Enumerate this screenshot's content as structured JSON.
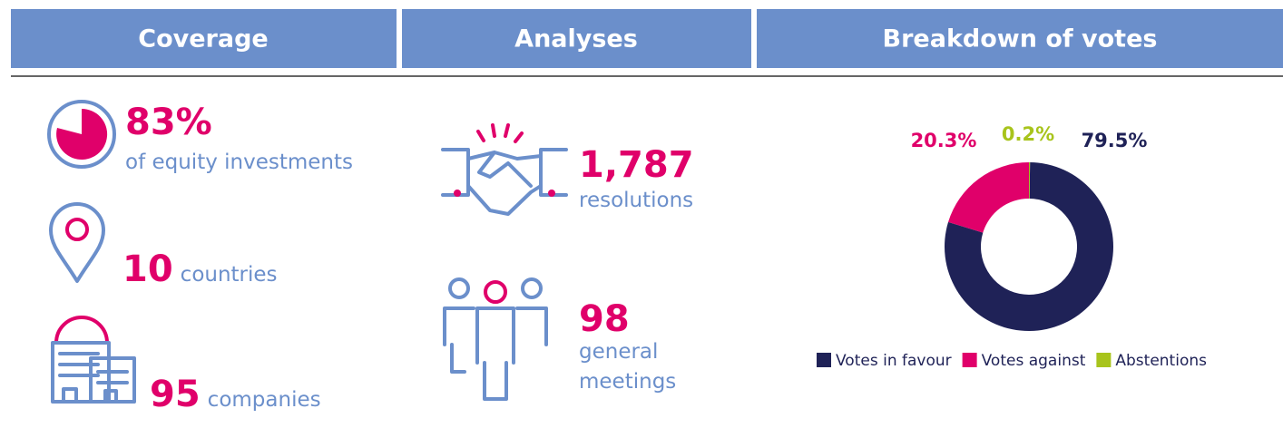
{
  "headers": [
    "Coverage",
    "Analyses",
    "Breakdown of votes"
  ],
  "coverage": [
    {
      "value": "83%",
      "label": "of equity investments"
    },
    {
      "value": "10",
      "label": "countries"
    },
    {
      "value": "95",
      "label": "companies"
    }
  ],
  "analyses": [
    {
      "value": "1,787",
      "label": "resolutions"
    },
    {
      "value": "98",
      "label": [
        "general",
        "meetings"
      ]
    }
  ],
  "chart_data": {
    "type": "donut",
    "categories": [
      "Votes in favour",
      "Votes against",
      "Abstentions"
    ],
    "values": [
      79.5,
      20.3,
      0.2
    ],
    "value_labels": [
      "79.5%",
      "20.3%",
      "0.2%"
    ],
    "colors": [
      "#1f2257",
      "#e0006a",
      "#a8c41c"
    ]
  }
}
